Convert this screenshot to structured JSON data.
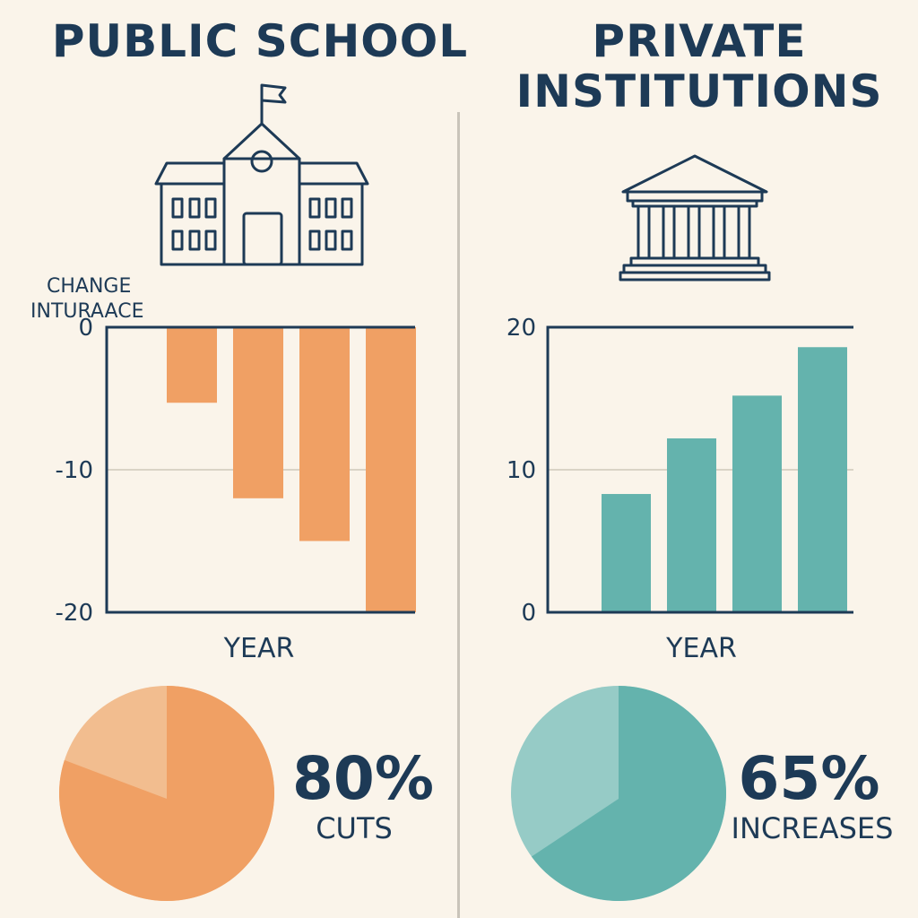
{
  "titles": {
    "left": "PUBLIC SCHOOL",
    "right_line1": "PRIVATE",
    "right_line2": "INSTITUTIONS"
  },
  "icons": {
    "left": "school-building-icon",
    "right": "classical-institution-icon"
  },
  "colors": {
    "public": "#f0a064",
    "private": "#64b3ad",
    "public_light": "#f2bd8f",
    "private_light": "#96cbc6",
    "text": "#1d3a56"
  },
  "chart_data": [
    {
      "type": "bar",
      "ylabel_line1": "CHANGE",
      "ylabel_line2": "INTURAACE",
      "xlabel": "YEAR",
      "yticks": [
        0,
        -10,
        -20
      ],
      "ylim": [
        -20,
        0
      ],
      "values": [
        -5.3,
        -12,
        -15,
        -20
      ],
      "grid": true
    },
    {
      "type": "bar",
      "xlabel": "YEAR",
      "yticks": [
        20,
        10,
        0
      ],
      "ylim": [
        0,
        20
      ],
      "values": [
        8.3,
        12.2,
        15.2,
        18.6
      ],
      "grid": true
    },
    {
      "type": "pie",
      "values": [
        80,
        20
      ],
      "label": "80%",
      "sublabel": "CUTS"
    },
    {
      "type": "pie",
      "values": [
        65,
        35
      ],
      "label": "65%",
      "sublabel": "INCREASES"
    }
  ]
}
